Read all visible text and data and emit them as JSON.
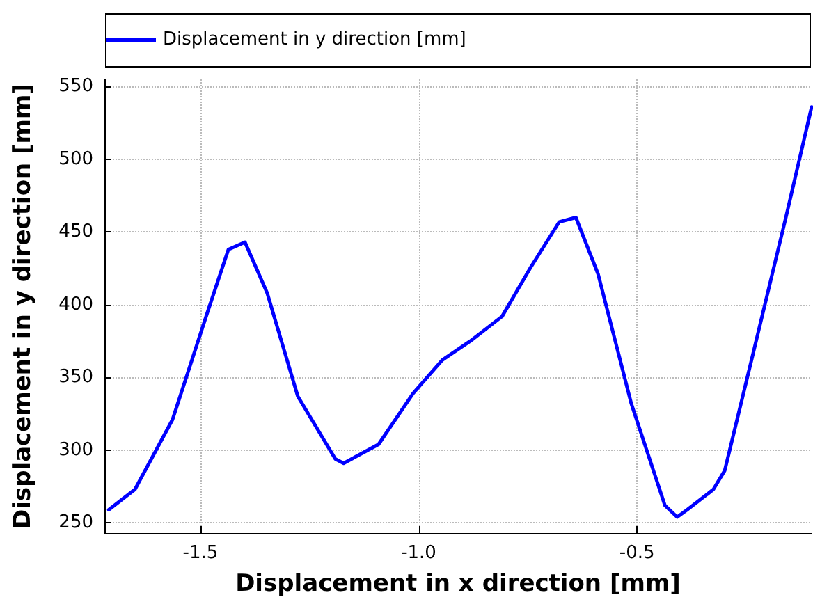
{
  "chart_data": {
    "type": "line",
    "xlabel": "Displacement in x direction [mm]",
    "ylabel": "Displacement in y direction [mm]",
    "xlim": [
      -1.72,
      -0.1
    ],
    "ylim": [
      243,
      555
    ],
    "xticks": [
      -1.5,
      {
        "value": -1,
        "label": "-1.0"
      },
      -0.5
    ],
    "yticks": [
      250,
      300,
      350,
      400,
      450,
      500,
      550
    ],
    "grid": true,
    "legend": "top",
    "marker": "none",
    "line_style": "solid",
    "series": [
      {
        "name": "Displacement in y direction [mm]",
        "color": "#0000ff",
        "x": [
          -1.71,
          -1.65,
          -1.564,
          -1.487,
          -1.436,
          -1.398,
          -1.347,
          -1.277,
          -1.191,
          -1.172,
          -1.092,
          -1.013,
          -0.946,
          -0.882,
          -0.809,
          -0.745,
          -0.678,
          -0.64,
          -0.589,
          -0.513,
          -0.436,
          -0.408,
          -0.385,
          -0.325,
          -0.299,
          -0.236,
          -0.159,
          -0.1
        ],
        "values": [
          259,
          273,
          321,
          392,
          438,
          443,
          408,
          337,
          294,
          291,
          304,
          339,
          362,
          375,
          392,
          425,
          457,
          460,
          421,
          332,
          262,
          254,
          259,
          273,
          286,
          364,
          460,
          536
        ]
      }
    ]
  }
}
